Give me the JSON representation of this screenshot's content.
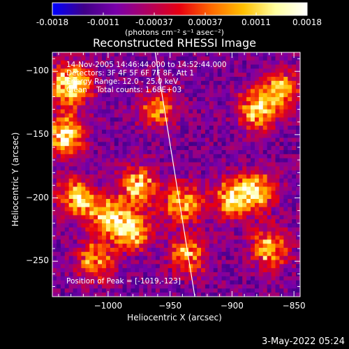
{
  "chart_data": {
    "type": "heatmap",
    "title": "Reconstructed RHESSI Image",
    "xlabel": "Heliocentric X (arcsec)",
    "ylabel": "Heliocentric Y (arcsec)",
    "xlim": [
      -1045,
      -845
    ],
    "ylim": [
      -278,
      -85
    ],
    "x_ticks": [
      -1000,
      -950,
      -900,
      -850
    ],
    "y_ticks": [
      -100,
      -150,
      -200,
      -250
    ],
    "colorbar": {
      "range": [
        -0.0018,
        0.0018
      ],
      "ticks": [
        "-0.0018",
        "-0.0011",
        "-0.00037",
        "0.00037",
        "0.0011",
        "0.0018"
      ],
      "units_label": "(photons cm⁻² s⁻¹ asec⁻²)",
      "colormap": [
        "#0000ff",
        "#400088",
        "#7a00aa",
        "#b00060",
        "#e80010",
        "#ff6a00",
        "#ffc000",
        "#ffffa0",
        "#ffffff"
      ]
    },
    "annotations": [
      "14-Nov-2005 14:46:44.000 to 14:52:44.000",
      "Detectors: 3F 4F 5F 6F 7F 8F, Att 1",
      "Energy Range: 12.0 - 25.0 keV",
      "Clean    Total counts: 1.68E+03"
    ],
    "peak_label": "Position of Peak = [-1019,-123]",
    "limb_line": {
      "x": [
        -962,
        -930
      ],
      "y": [
        -85,
        -278
      ]
    },
    "hot_regions": [
      {
        "x": -1030,
        "y": -110,
        "value": 0.0017
      },
      {
        "x": -1035,
        "y": -150,
        "value": 0.0015
      },
      {
        "x": -1025,
        "y": -200,
        "value": 0.0012
      },
      {
        "x": -1000,
        "y": -215,
        "value": 0.0011
      },
      {
        "x": -980,
        "y": -225,
        "value": 0.0012
      },
      {
        "x": -975,
        "y": -190,
        "value": 0.001
      },
      {
        "x": -1010,
        "y": -250,
        "value": 0.0008
      },
      {
        "x": -940,
        "y": -205,
        "value": 0.001
      },
      {
        "x": -900,
        "y": -200,
        "value": 0.0011
      },
      {
        "x": -880,
        "y": -195,
        "value": 0.001
      },
      {
        "x": -870,
        "y": -240,
        "value": 0.001
      },
      {
        "x": -880,
        "y": -130,
        "value": 0.0011
      },
      {
        "x": -860,
        "y": -115,
        "value": 0.0009
      },
      {
        "x": -935,
        "y": -245,
        "value": 0.0008
      },
      {
        "x": -960,
        "y": -130,
        "value": 0.0006
      }
    ]
  },
  "footer": "3-May-2022 05:24"
}
